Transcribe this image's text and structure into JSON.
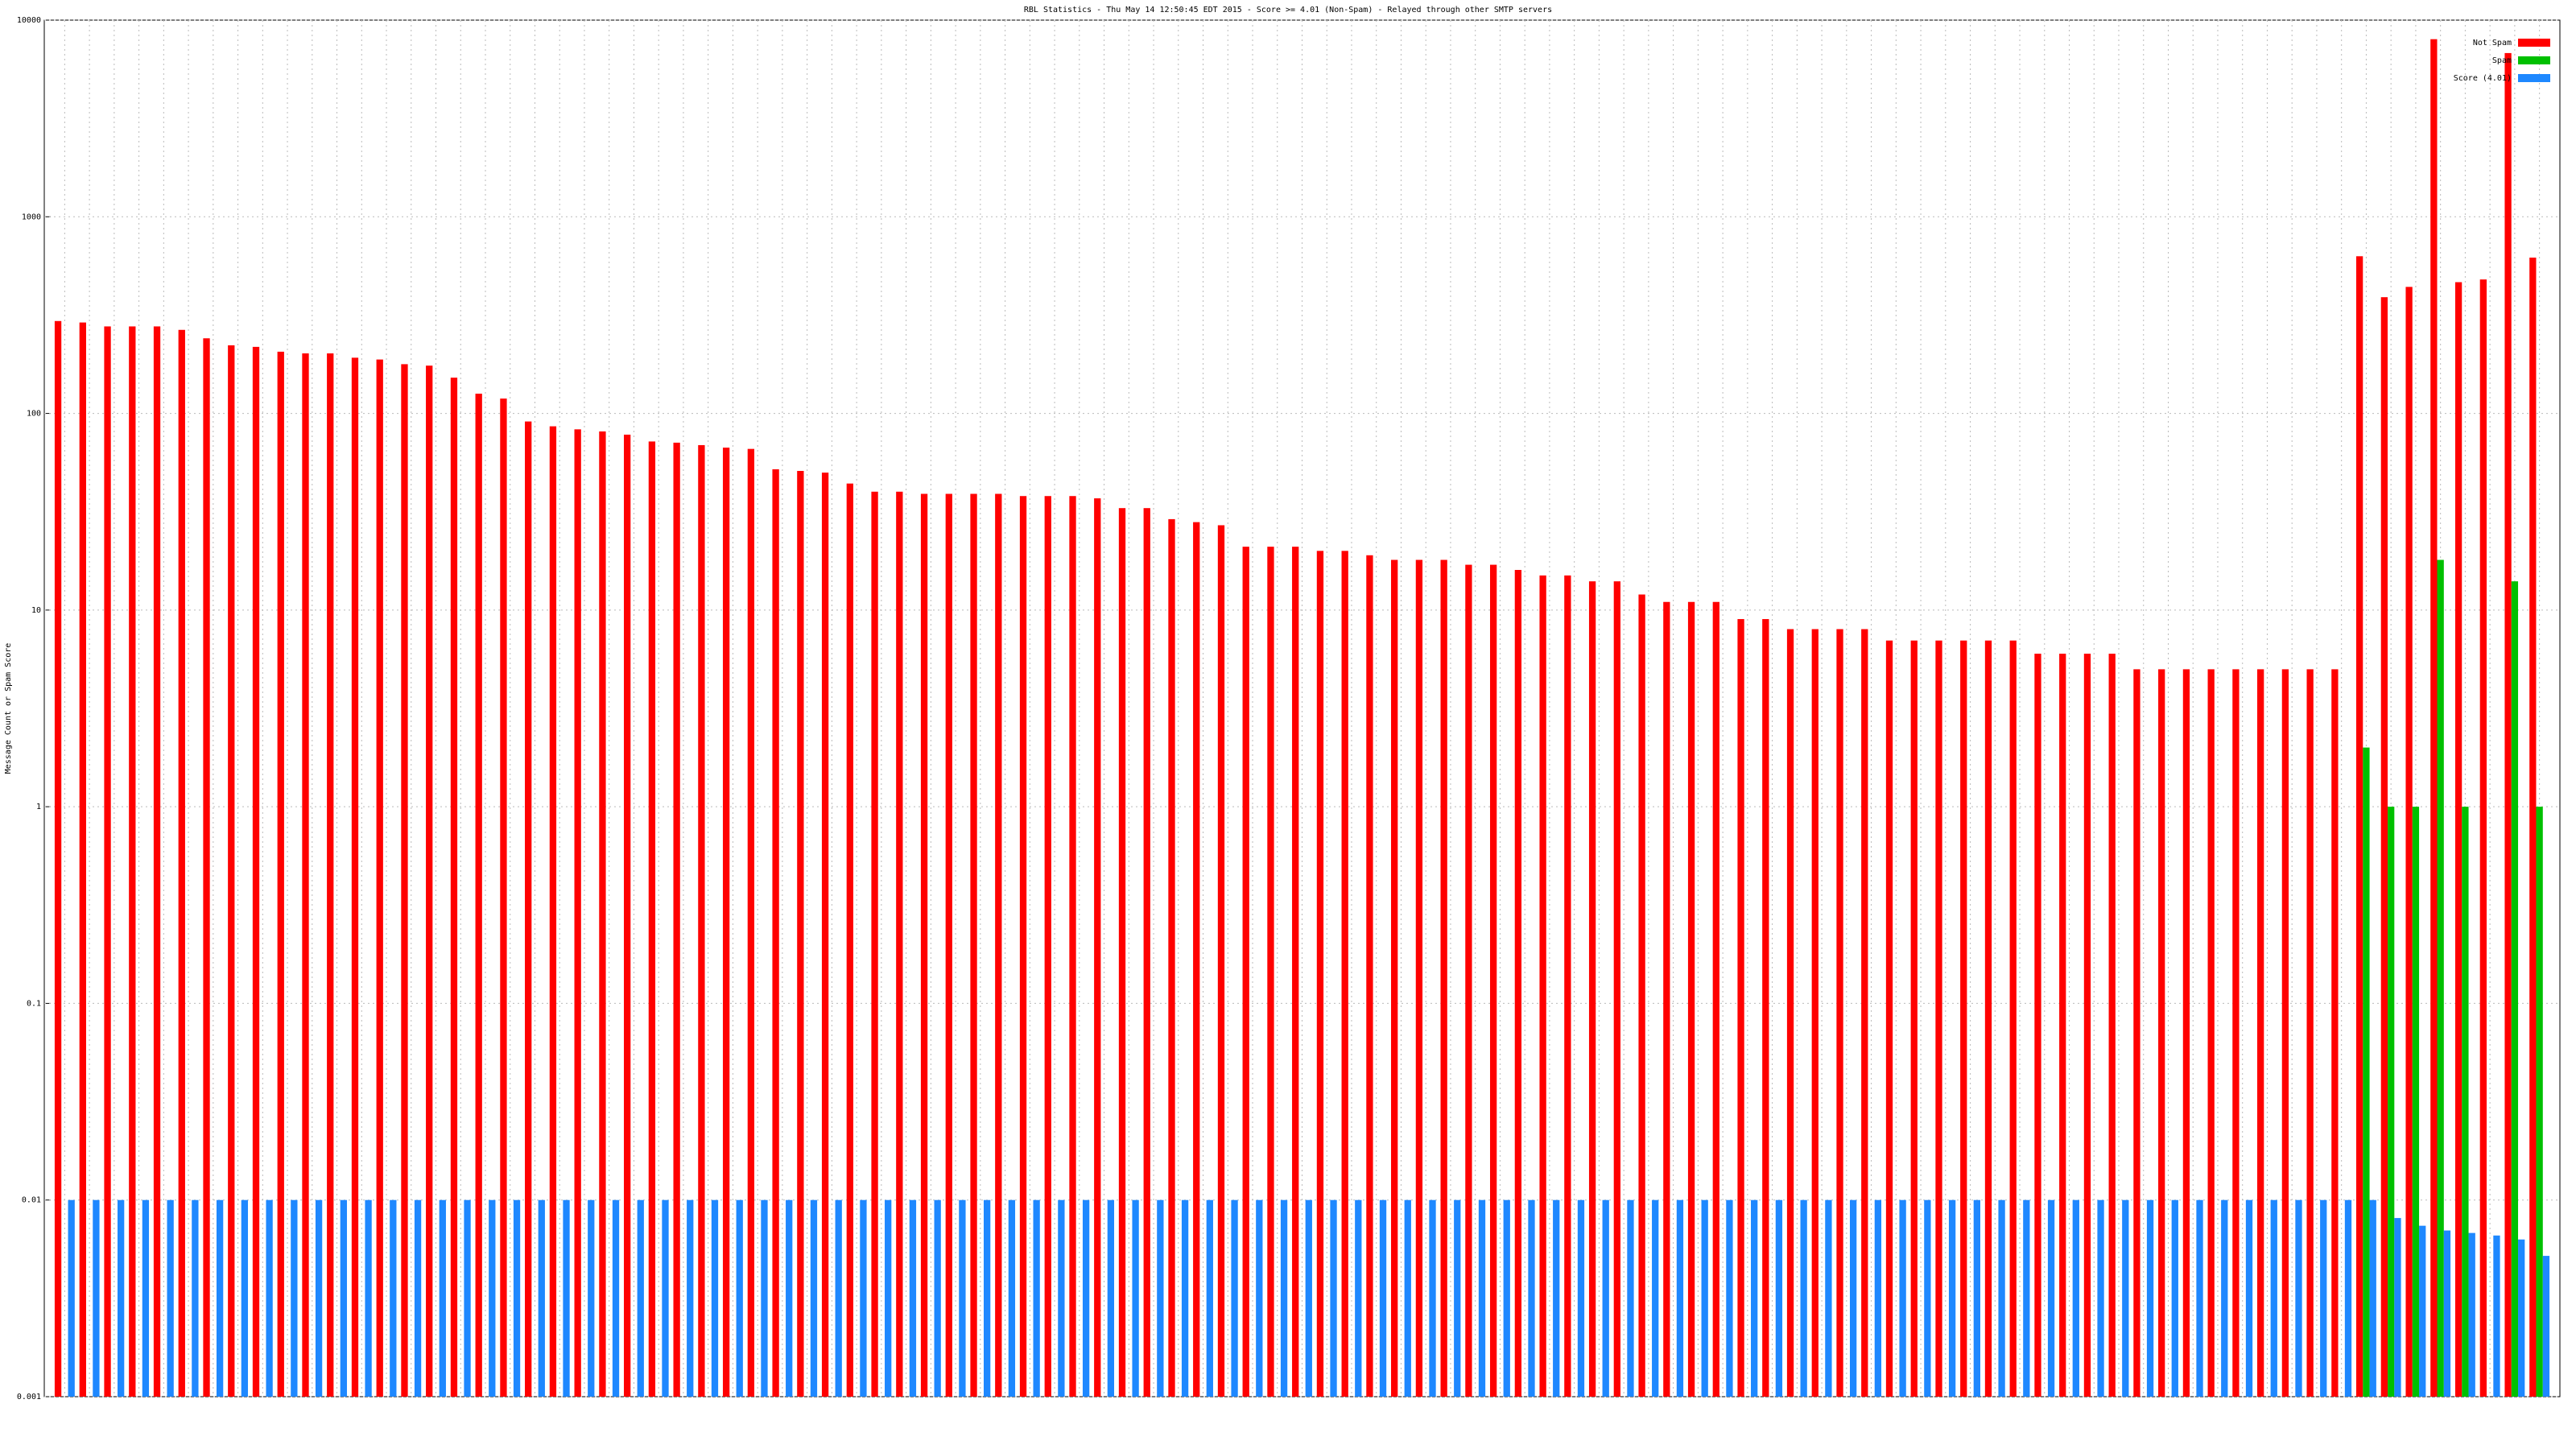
{
  "chart_data": {
    "type": "bar",
    "title": "RBL Statistics - Thu May 14 12:50:45 EDT 2015 - Score >= 4.01 (Non-Spam) - Relayed through other SMTP servers",
    "y_label": "Message Count or Spam Score",
    "log_scale": true,
    "grid": true,
    "legend": "upper right",
    "categories": [
      null,
      null,
      null,
      null,
      null,
      null,
      null,
      null,
      null,
      null,
      null,
      null,
      null,
      null,
      null,
      null,
      null,
      null,
      null,
      null,
      null,
      null,
      null,
      null,
      null,
      null,
      null,
      null,
      null,
      null,
      null,
      null,
      null,
      null,
      null,
      null,
      null,
      null,
      null,
      null,
      null,
      null,
      null,
      null,
      null,
      null,
      null,
      null,
      null,
      null,
      null,
      null,
      null,
      null,
      null,
      null,
      null,
      null,
      null,
      null,
      null,
      null,
      null,
      null,
      null,
      null,
      null,
      null,
      null,
      null,
      null,
      null,
      null,
      null,
      null,
      null,
      null,
      null,
      null,
      null,
      null,
      null,
      null,
      null,
      null,
      null,
      null,
      null,
      null,
      null,
      null,
      null,
      null,
      null,
      null,
      null,
      null,
      null,
      null,
      null,
      null
    ],
    "series": [
      {
        "name": "Not Spam",
        "color": "#ff0000",
        "values": [
          295,
          290,
          277,
          277,
          277,
          266,
          241,
          222,
          218,
          206,
          202,
          202,
          192,
          188,
          178,
          175,
          152,
          126,
          119,
          91,
          86,
          83,
          81,
          78,
          72,
          71,
          69,
          67,
          66,
          52,
          51,
          50,
          44,
          40,
          40,
          39,
          39,
          39,
          39,
          38,
          38,
          38,
          37,
          33,
          33,
          29,
          28,
          27,
          21,
          21,
          21,
          20,
          20,
          19,
          18,
          18,
          18,
          17,
          17,
          16,
          15,
          15,
          14,
          14,
          12,
          11,
          11,
          11,
          9,
          9,
          8,
          8,
          8,
          8,
          7,
          7,
          7,
          7,
          7,
          7,
          6,
          6,
          6,
          6,
          5,
          5,
          5,
          5,
          5,
          5,
          5,
          5,
          5,
          630,
          390,
          440,
          8000,
          465,
          480,
          6800,
          620
        ]
      },
      {
        "name": "Spam",
        "color": "#00c000",
        "values": [
          null,
          null,
          null,
          null,
          null,
          null,
          null,
          null,
          null,
          null,
          null,
          null,
          null,
          null,
          null,
          null,
          null,
          null,
          null,
          null,
          null,
          null,
          null,
          null,
          null,
          null,
          null,
          null,
          null,
          null,
          null,
          null,
          null,
          null,
          null,
          null,
          null,
          null,
          null,
          null,
          null,
          null,
          null,
          null,
          null,
          null,
          null,
          null,
          null,
          null,
          null,
          null,
          null,
          null,
          null,
          null,
          null,
          null,
          null,
          null,
          null,
          null,
          null,
          null,
          null,
          null,
          null,
          null,
          null,
          null,
          null,
          null,
          null,
          null,
          null,
          null,
          null,
          null,
          null,
          null,
          null,
          null,
          null,
          null,
          null,
          null,
          null,
          null,
          null,
          null,
          null,
          null,
          null,
          2,
          1,
          1,
          18,
          1,
          null,
          14,
          1
        ]
      },
      {
        "name": "Score (4.01)",
        "color": "#1e88ff",
        "values": [
          0.01,
          0.01,
          0.01,
          0.01,
          0.01,
          0.01,
          0.01,
          0.01,
          0.01,
          0.01,
          0.01,
          0.01,
          0.01,
          0.01,
          0.01,
          0.01,
          0.01,
          0.01,
          0.01,
          0.01,
          0.01,
          0.01,
          0.01,
          0.01,
          0.01,
          0.01,
          0.01,
          0.01,
          0.01,
          0.01,
          0.01,
          0.01,
          0.01,
          0.01,
          0.01,
          0.01,
          0.01,
          0.01,
          0.01,
          0.01,
          0.01,
          0.01,
          0.01,
          0.01,
          0.01,
          0.01,
          0.01,
          0.01,
          0.01,
          0.01,
          0.01,
          0.01,
          0.01,
          0.01,
          0.01,
          0.01,
          0.01,
          0.01,
          0.01,
          0.01,
          0.01,
          0.01,
          0.01,
          0.01,
          0.01,
          0.01,
          0.01,
          0.01,
          0.01,
          0.01,
          0.01,
          0.01,
          0.01,
          0.01,
          0.01,
          0.01,
          0.01,
          0.01,
          0.01,
          0.01,
          0.01,
          0.01,
          0.01,
          0.01,
          0.01,
          0.01,
          0.01,
          0.01,
          0.01,
          0.01,
          0.01,
          0.01,
          0.01,
          0.01,
          0.0081,
          0.0074,
          0.007,
          0.0068,
          0.0066,
          0.0063,
          0.0052
        ]
      }
    ],
    "ylim": [
      0.001,
      10000
    ],
    "yticks": [
      0.001,
      0.01,
      0.1,
      1,
      10,
      100,
      1000,
      10000
    ]
  }
}
